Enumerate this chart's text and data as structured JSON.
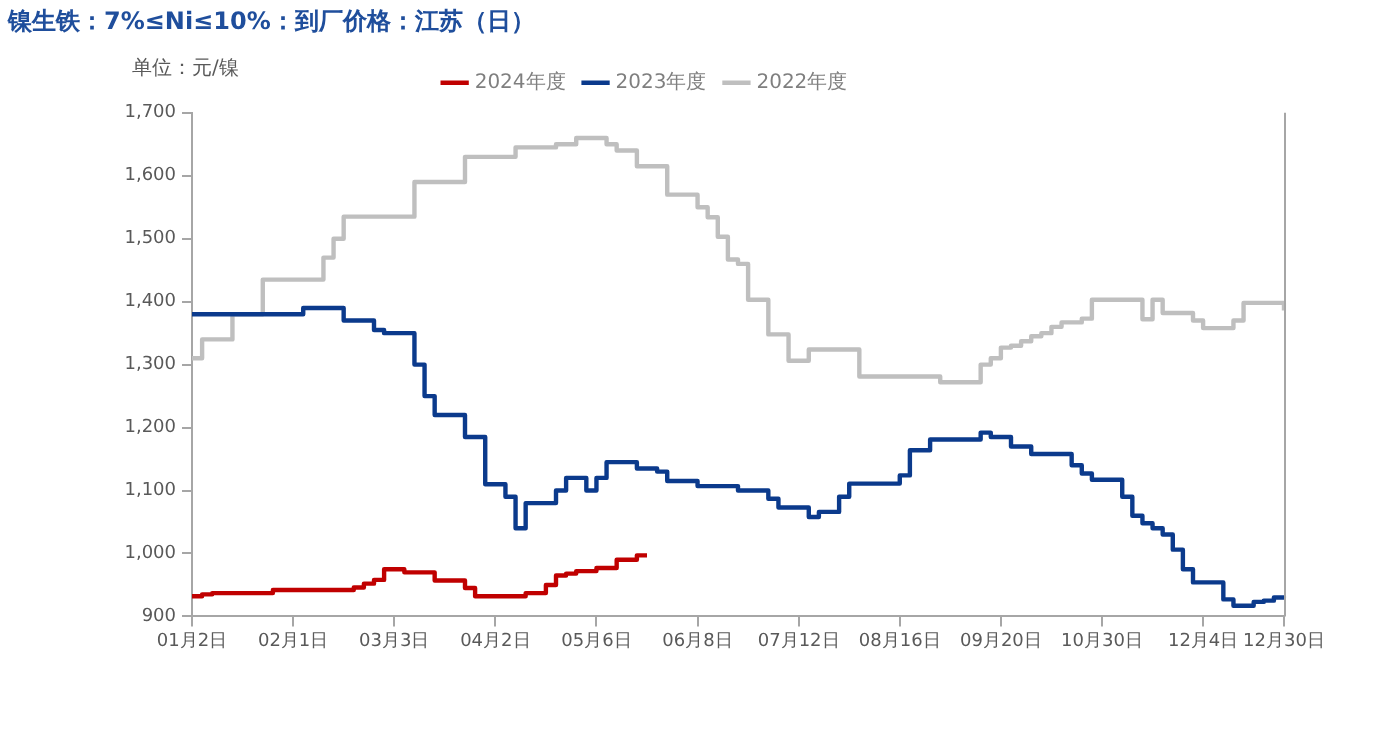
{
  "chart_data": {
    "type": "step",
    "title": "镍生铁：7%≤Ni≤10%：到厂价格：江苏（日）",
    "ylabel": "单位：元/镍",
    "categories": [
      "01月2日",
      null,
      null,
      null,
      null,
      null,
      null,
      null,
      null,
      null,
      "02月1日",
      null,
      null,
      null,
      null,
      null,
      null,
      null,
      null,
      null,
      "03月3日",
      null,
      null,
      null,
      null,
      null,
      null,
      null,
      null,
      null,
      "04月2日",
      null,
      null,
      null,
      null,
      null,
      null,
      null,
      null,
      null,
      "05月6日",
      null,
      null,
      null,
      null,
      null,
      null,
      null,
      null,
      null,
      "06月8日",
      null,
      null,
      null,
      null,
      null,
      null,
      null,
      null,
      null,
      "07月12日",
      null,
      null,
      null,
      null,
      null,
      null,
      null,
      null,
      null,
      "08月16日",
      null,
      null,
      null,
      null,
      null,
      null,
      null,
      null,
      null,
      "09月20日",
      null,
      null,
      null,
      null,
      null,
      null,
      null,
      null,
      null,
      "10月30日",
      null,
      null,
      null,
      null,
      null,
      null,
      null,
      null,
      null,
      "12月4日",
      null,
      null,
      null,
      null,
      null,
      null,
      null,
      "12月30日"
    ],
    "series": [
      {
        "name": "2024年度",
        "color": "#c00000",
        "values": [
          932,
          935,
          937,
          937,
          937,
          937,
          937,
          937,
          942,
          942,
          942,
          942,
          942,
          942,
          942,
          942,
          946,
          952,
          958,
          975,
          975,
          970,
          970,
          970,
          957,
          957,
          957,
          945,
          932,
          932,
          932,
          932,
          932,
          937,
          937,
          950,
          965,
          968,
          972,
          972,
          977,
          977,
          990,
          990,
          997,
          997,
          null,
          null,
          null,
          null,
          null,
          null,
          null,
          null,
          null,
          null,
          null,
          null,
          null,
          null,
          null,
          null,
          null,
          null,
          null,
          null,
          null,
          null,
          null,
          null,
          null,
          null,
          null,
          null,
          null,
          null,
          null,
          null,
          null,
          null,
          null,
          null,
          null,
          null,
          null,
          null,
          null,
          null,
          null,
          null,
          null,
          null,
          null,
          null,
          null,
          null,
          null,
          null,
          null,
          null,
          null,
          null,
          null,
          null,
          null,
          null,
          null,
          null,
          null
        ]
      },
      {
        "name": "2023年度",
        "color": "#0b3a8c",
        "values": [
          1380,
          1380,
          1380,
          1380,
          1380,
          1380,
          1380,
          1380,
          1380,
          1380,
          1380,
          1390,
          1390,
          1390,
          1390,
          1370,
          1370,
          1370,
          1355,
          1350,
          1350,
          1350,
          1300,
          1250,
          1220,
          1220,
          1220,
          1185,
          1185,
          1110,
          1110,
          1090,
          1040,
          1080,
          1080,
          1080,
          1100,
          1120,
          1120,
          1100,
          1120,
          1145,
          1145,
          1145,
          1135,
          1135,
          1130,
          1115,
          1115,
          1115,
          1107,
          1107,
          1107,
          1107,
          1100,
          1100,
          1100,
          1087,
          1073,
          1073,
          1073,
          1058,
          1066,
          1066,
          1090,
          1111,
          1111,
          1111,
          1111,
          1111,
          1124,
          1164,
          1164,
          1181,
          1181,
          1181,
          1181,
          1181,
          1192,
          1185,
          1185,
          1170,
          1170,
          1158,
          1158,
          1158,
          1158,
          1140,
          1127,
          1117,
          1117,
          1117,
          1090,
          1060,
          1048,
          1040,
          1030,
          1006,
          975,
          954,
          954,
          954,
          927,
          917,
          917,
          923,
          925,
          930,
          932
        ]
      },
      {
        "name": "2022年度",
        "color": "#bfbfbf",
        "values": [
          1310,
          1340,
          1340,
          1340,
          1380,
          1380,
          1380,
          1435,
          1435,
          1435,
          1435,
          1435,
          1435,
          1470,
          1500,
          1535,
          1535,
          1535,
          1535,
          1535,
          1535,
          1535,
          1590,
          1590,
          1590,
          1590,
          1590,
          1630,
          1630,
          1630,
          1630,
          1630,
          1645,
          1645,
          1645,
          1645,
          1650,
          1650,
          1660,
          1660,
          1660,
          1650,
          1640,
          1640,
          1615,
          1615,
          1615,
          1570,
          1570,
          1570,
          1550,
          1534,
          1503,
          1467,
          1460,
          1403,
          1403,
          1348,
          1348,
          1306,
          1306,
          1324,
          1324,
          1324,
          1324,
          1324,
          1281,
          1281,
          1281,
          1281,
          1281,
          1281,
          1281,
          1281,
          1272,
          1272,
          1272,
          1272,
          1300,
          1310,
          1327,
          1330,
          1337,
          1345,
          1350,
          1360,
          1367,
          1367,
          1373,
          1403,
          1403,
          1403,
          1403,
          1403,
          1372,
          1403,
          1382,
          1382,
          1382,
          1370,
          1358,
          1358,
          1358,
          1370,
          1398,
          1398,
          1398,
          1398,
          1386
        ]
      }
    ],
    "ylim": [
      900,
      1700
    ],
    "yticks": [
      {
        "value": 900,
        "label": "900"
      },
      {
        "value": 1000,
        "label": "1,000"
      },
      {
        "value": 1100,
        "label": "1,100"
      },
      {
        "value": 1200,
        "label": "1,200"
      },
      {
        "value": 1300,
        "label": "1,300"
      },
      {
        "value": 1400,
        "label": "1,400"
      },
      {
        "value": 1500,
        "label": "1,500"
      },
      {
        "value": 1600,
        "label": "1,600"
      },
      {
        "value": 1700,
        "label": "1,700"
      }
    ],
    "grid": false,
    "legend": "top"
  }
}
